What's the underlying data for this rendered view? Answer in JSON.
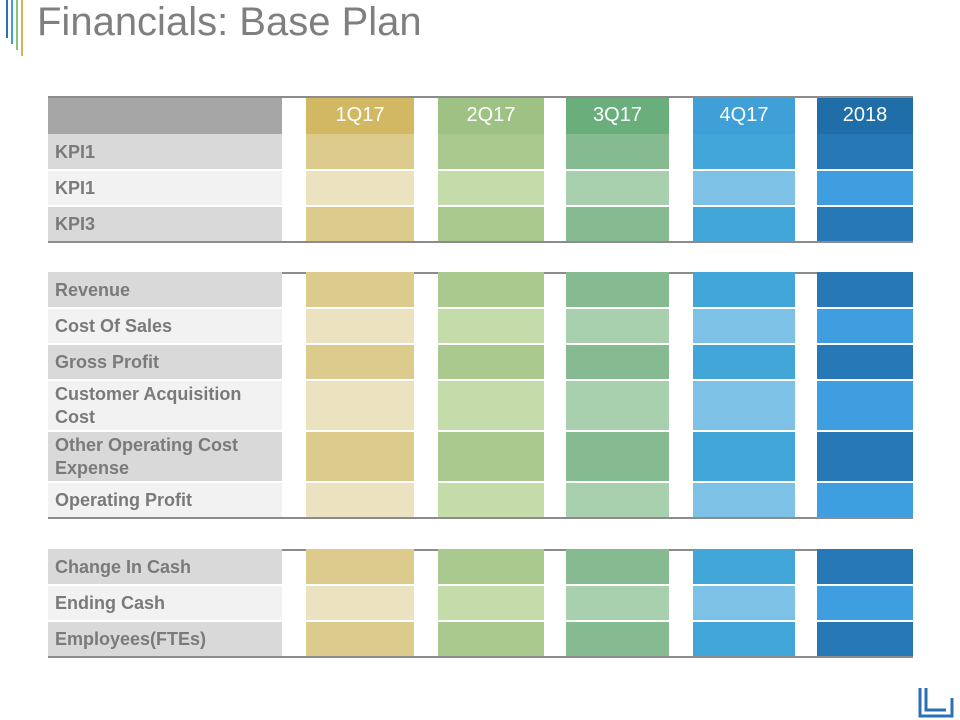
{
  "title": "Financials: Base Plan",
  "columns": [
    "1Q17",
    "2Q17",
    "3Q17",
    "4Q17",
    "2018"
  ],
  "header_colors": [
    "#d3b864",
    "#9dc284",
    "#6aae7c",
    "#3ea0d6",
    "#1f6ea8"
  ],
  "dark_colors": [
    "#dccb8d",
    "#a9c98e",
    "#86bb91",
    "#43a6d9",
    "#2778b6"
  ],
  "light_colors": [
    "#ebe2bf",
    "#c3dcaa",
    "#a8cfae",
    "#7dc1e6",
    "#3f9edf"
  ],
  "sections": [
    {
      "rows": [
        {
          "label": "KPI1",
          "shade": "dark"
        },
        {
          "label": "KPI1",
          "shade": "light"
        },
        {
          "label": "KPI3",
          "shade": "dark"
        }
      ]
    },
    {
      "rows": [
        {
          "label": "Revenue",
          "shade": "dark"
        },
        {
          "label": "Cost Of Sales",
          "shade": "light"
        },
        {
          "label": "Gross Profit",
          "shade": "dark"
        },
        {
          "label": "Customer Acquisition Cost",
          "shade": "light"
        },
        {
          "label": "Other Operating Cost Expense",
          "shade": "dark"
        },
        {
          "label": "Operating Profit",
          "shade": "light"
        }
      ]
    },
    {
      "rows": [
        {
          "label": "Change In Cash",
          "shade": "dark"
        },
        {
          "label": "Ending Cash",
          "shade": "light"
        },
        {
          "label": "Employees(FTEs)",
          "shade": "dark"
        }
      ]
    }
  ]
}
